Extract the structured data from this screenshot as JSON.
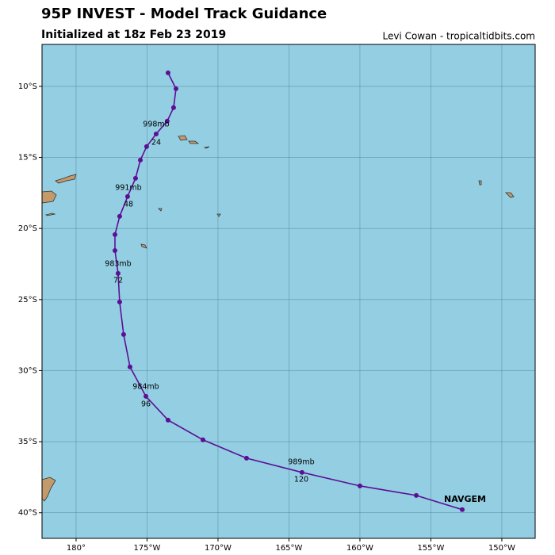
{
  "chart_data": {
    "type": "line",
    "title": "95P INVEST - Model Track Guidance",
    "subtitle": "Initialized at 18z Feb 23 2019",
    "credit": "Levi Cowan - tropicaltidbits.com",
    "xlim": [
      -182.4,
      -147.65
    ],
    "ylim": [
      -41.8,
      -7.05
    ],
    "xticks": [
      {
        "value": -180,
        "label": "180°"
      },
      {
        "value": -175,
        "label": "175°W"
      },
      {
        "value": -170,
        "label": "170°W"
      },
      {
        "value": -165,
        "label": "165°W"
      },
      {
        "value": -160,
        "label": "160°W"
      },
      {
        "value": -155,
        "label": "155°W"
      },
      {
        "value": -150,
        "label": "150°W"
      }
    ],
    "yticks": [
      {
        "value": -10,
        "label": "10°S"
      },
      {
        "value": -15,
        "label": "15°S"
      },
      {
        "value": -20,
        "label": "20°S"
      },
      {
        "value": -25,
        "label": "25°S"
      },
      {
        "value": -30,
        "label": "30°S"
      },
      {
        "value": -35,
        "label": "35°S"
      },
      {
        "value": -40,
        "label": "40°S"
      }
    ],
    "grid": true,
    "series": [
      {
        "name": "NAVGEM",
        "color": "#5c0f94",
        "x": [
          -173.52,
          -172.96,
          -173.13,
          -173.58,
          -174.36,
          -175.03,
          -175.47,
          -175.81,
          -176.37,
          -176.93,
          -177.26,
          -177.26,
          -177.04,
          -176.93,
          -176.65,
          -176.2,
          -175.08,
          -173.52,
          -171.06,
          -167.99,
          -164.08,
          -160.0,
          -156.03,
          -152.79
        ],
        "values": [
          -9.05,
          -10.17,
          -11.5,
          -12.45,
          -13.35,
          -14.24,
          -15.19,
          -16.47,
          -17.75,
          -19.15,
          -20.43,
          -21.55,
          -23.16,
          -25.17,
          -27.46,
          -29.74,
          -31.81,
          -33.48,
          -34.87,
          -36.16,
          -37.16,
          -38.11,
          -38.78,
          -39.78
        ]
      }
    ],
    "annotations": [
      {
        "pressure": "998mb",
        "hour": "24"
      },
      {
        "pressure": "991mb",
        "hour": "48"
      },
      {
        "pressure": "983mb",
        "hour": "72"
      },
      {
        "pressure": "984mb",
        "hour": "96"
      },
      {
        "pressure": "989mb",
        "hour": "120"
      }
    ]
  }
}
